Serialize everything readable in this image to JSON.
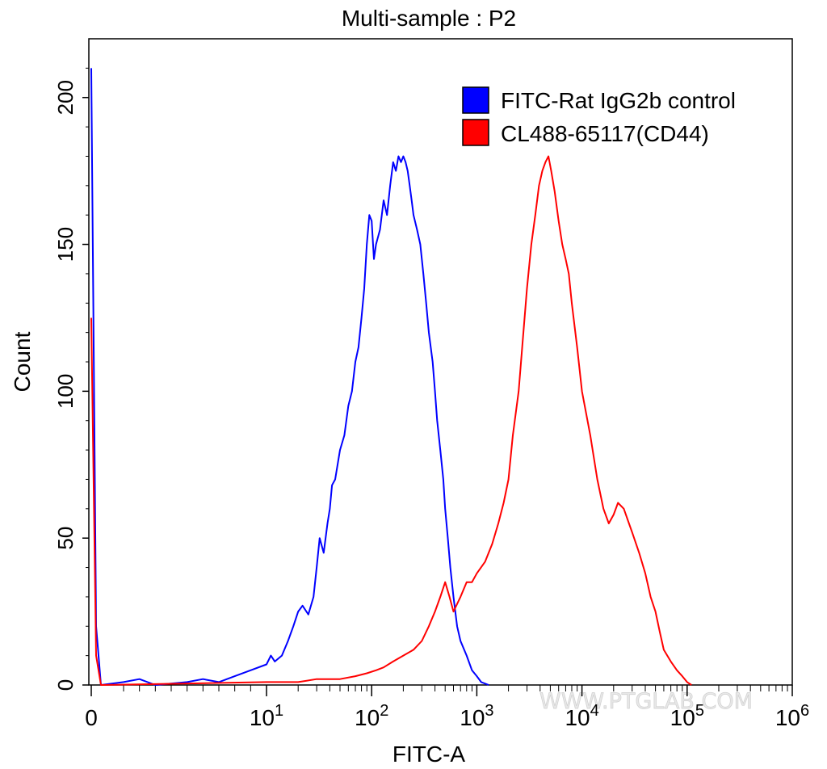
{
  "chart_data": {
    "type": "histogram",
    "title": "Multi-sample : P2",
    "xlabel": "FITC-A",
    "ylabel": "Count",
    "xscale": "biexponential-log",
    "xlim": [
      0,
      1000000
    ],
    "ylim": [
      0,
      220
    ],
    "x_ticks": [
      {
        "value": 0,
        "base": "0",
        "exp": ""
      },
      {
        "value": 10,
        "base": "10",
        "exp": "1"
      },
      {
        "value": 100,
        "base": "10",
        "exp": "2"
      },
      {
        "value": 1000,
        "base": "10",
        "exp": "3"
      },
      {
        "value": 10000,
        "base": "10",
        "exp": "4"
      },
      {
        "value": 100000,
        "base": "10",
        "exp": "5"
      },
      {
        "value": 1000000,
        "base": "10",
        "exp": "6"
      }
    ],
    "y_ticks": [
      0,
      50,
      100,
      150,
      200
    ],
    "watermark": "WWW.PTGLAB.COM",
    "legend_position": "top-right",
    "series": [
      {
        "name": "FITC-Rat IgG2b control",
        "color": "#0000ff",
        "points": [
          [
            0,
            210
          ],
          [
            0.15,
            20
          ],
          [
            0.3,
            0
          ],
          [
            1,
            1
          ],
          [
            2,
            2
          ],
          [
            3,
            0
          ],
          [
            5,
            1
          ],
          [
            6,
            2
          ],
          [
            7,
            1
          ],
          [
            8,
            3
          ],
          [
            9,
            5
          ],
          [
            10,
            7
          ],
          [
            11,
            10
          ],
          [
            12,
            8
          ],
          [
            14,
            10
          ],
          [
            16,
            15
          ],
          [
            18,
            20
          ],
          [
            20,
            25
          ],
          [
            22,
            27
          ],
          [
            25,
            24
          ],
          [
            28,
            30
          ],
          [
            30,
            40
          ],
          [
            32,
            50
          ],
          [
            35,
            45
          ],
          [
            38,
            55
          ],
          [
            40,
            60
          ],
          [
            42,
            68
          ],
          [
            45,
            70
          ],
          [
            50,
            80
          ],
          [
            55,
            85
          ],
          [
            60,
            95
          ],
          [
            65,
            100
          ],
          [
            70,
            110
          ],
          [
            75,
            115
          ],
          [
            80,
            125
          ],
          [
            85,
            135
          ],
          [
            90,
            150
          ],
          [
            95,
            160
          ],
          [
            100,
            158
          ],
          [
            105,
            145
          ],
          [
            110,
            150
          ],
          [
            120,
            155
          ],
          [
            130,
            165
          ],
          [
            140,
            160
          ],
          [
            150,
            170
          ],
          [
            160,
            178
          ],
          [
            170,
            175
          ],
          [
            180,
            180
          ],
          [
            190,
            178
          ],
          [
            200,
            180
          ],
          [
            210,
            178
          ],
          [
            220,
            175
          ],
          [
            230,
            170
          ],
          [
            240,
            165
          ],
          [
            250,
            160
          ],
          [
            270,
            155
          ],
          [
            290,
            150
          ],
          [
            310,
            140
          ],
          [
            330,
            130
          ],
          [
            350,
            120
          ],
          [
            380,
            110
          ],
          [
            400,
            100
          ],
          [
            420,
            90
          ],
          [
            450,
            80
          ],
          [
            480,
            70
          ],
          [
            500,
            60
          ],
          [
            530,
            50
          ],
          [
            560,
            40
          ],
          [
            600,
            30
          ],
          [
            650,
            20
          ],
          [
            700,
            15
          ],
          [
            800,
            10
          ],
          [
            900,
            5
          ],
          [
            1000,
            3
          ],
          [
            1100,
            1
          ],
          [
            1300,
            0
          ]
        ]
      },
      {
        "name": "CL488-65117(CD44)",
        "color": "#ff0000",
        "points": [
          [
            0,
            125
          ],
          [
            0.15,
            10
          ],
          [
            0.3,
            0
          ],
          [
            10,
            1
          ],
          [
            20,
            1
          ],
          [
            30,
            2
          ],
          [
            50,
            2
          ],
          [
            70,
            3
          ],
          [
            90,
            4
          ],
          [
            110,
            5
          ],
          [
            130,
            6
          ],
          [
            160,
            8
          ],
          [
            200,
            10
          ],
          [
            250,
            12
          ],
          [
            300,
            15
          ],
          [
            350,
            20
          ],
          [
            400,
            25
          ],
          [
            450,
            30
          ],
          [
            500,
            35
          ],
          [
            550,
            30
          ],
          [
            600,
            25
          ],
          [
            700,
            30
          ],
          [
            800,
            35
          ],
          [
            900,
            35
          ],
          [
            1000,
            38
          ],
          [
            1200,
            42
          ],
          [
            1400,
            48
          ],
          [
            1600,
            55
          ],
          [
            1800,
            62
          ],
          [
            2000,
            70
          ],
          [
            2200,
            85
          ],
          [
            2500,
            100
          ],
          [
            2700,
            115
          ],
          [
            3000,
            135
          ],
          [
            3300,
            150
          ],
          [
            3600,
            160
          ],
          [
            3900,
            170
          ],
          [
            4200,
            175
          ],
          [
            4500,
            178
          ],
          [
            4800,
            180
          ],
          [
            5100,
            175
          ],
          [
            5500,
            168
          ],
          [
            6000,
            158
          ],
          [
            6500,
            150
          ],
          [
            7000,
            145
          ],
          [
            7500,
            140
          ],
          [
            8000,
            130
          ],
          [
            9000,
            115
          ],
          [
            10000,
            100
          ],
          [
            12000,
            85
          ],
          [
            14000,
            70
          ],
          [
            16000,
            60
          ],
          [
            18000,
            55
          ],
          [
            20000,
            58
          ],
          [
            22000,
            62
          ],
          [
            25000,
            60
          ],
          [
            28000,
            55
          ],
          [
            30000,
            52
          ],
          [
            35000,
            45
          ],
          [
            40000,
            38
          ],
          [
            45000,
            30
          ],
          [
            50000,
            25
          ],
          [
            55000,
            18
          ],
          [
            60000,
            12
          ],
          [
            70000,
            8
          ],
          [
            80000,
            5
          ],
          [
            90000,
            3
          ],
          [
            100000,
            1
          ],
          [
            110000,
            0
          ]
        ]
      }
    ]
  }
}
